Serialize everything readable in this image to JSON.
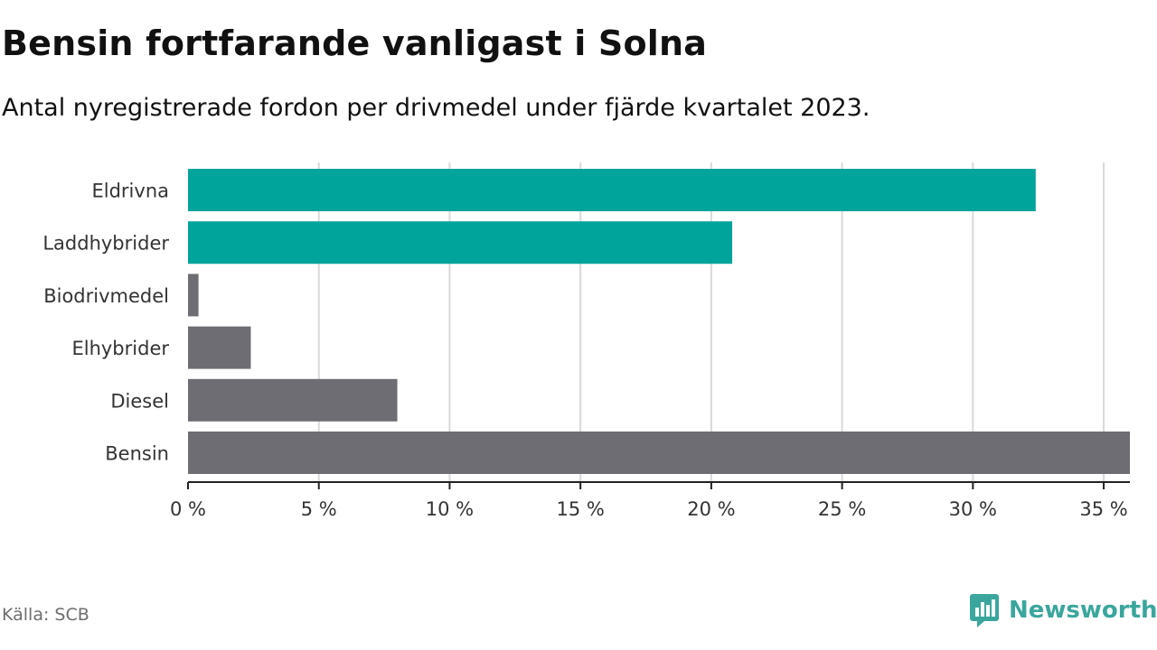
{
  "header": {
    "title": "Bensin fortfarande vanligast i Solna",
    "subtitle": "Antal nyregistrerade fordon per drivmedel under fjärde kvartalet 2023."
  },
  "footer": {
    "source": "Källa: SCB",
    "logo_text": "Newsworthy"
  },
  "colors": {
    "highlight": "#00a49a",
    "default": "#6e6d73",
    "grid": "#d9d9d9",
    "axis": "#222222",
    "label": "#333333",
    "brand": "#3aa69d"
  },
  "chart_data": {
    "type": "bar",
    "orientation": "horizontal",
    "title": "Bensin fortfarande vanligast i Solna",
    "subtitle": "Antal nyregistrerade fordon per drivmedel under fjärde kvartalet 2023.",
    "xlabel": "",
    "ylabel": "",
    "unit": "%",
    "xlim": [
      0,
      36
    ],
    "ticks": [
      0,
      5,
      10,
      15,
      20,
      25,
      30,
      35
    ],
    "tick_labels": [
      "0 %",
      "5 %",
      "10 %",
      "15 %",
      "20 %",
      "25 %",
      "30 %",
      "35 %"
    ],
    "grid": true,
    "categories": [
      "Eldrivna",
      "Laddhybrider",
      "Biodrivmedel",
      "Elhybrider",
      "Diesel",
      "Bensin"
    ],
    "values": [
      32.4,
      20.8,
      0.4,
      2.4,
      8.0,
      36.0
    ],
    "highlighted": [
      true,
      true,
      false,
      false,
      false,
      false
    ]
  }
}
